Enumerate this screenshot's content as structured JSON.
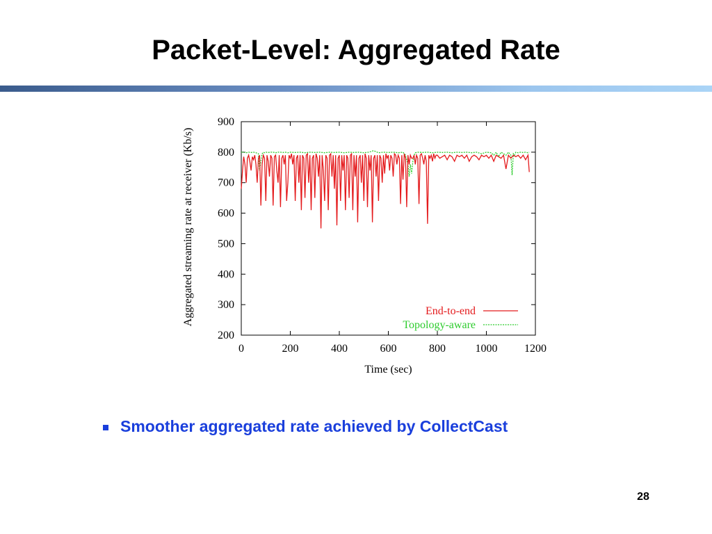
{
  "slide": {
    "title": "Packet-Level: Aggregated Rate",
    "bullet": "Smoother aggregated rate achieved by CollectCast",
    "page_number": "28"
  },
  "colors": {
    "bullet": "#1a3fdc",
    "end_to_end": "#e41a1c",
    "topology_aware": "#2ecc2e"
  },
  "chart_data": {
    "type": "line",
    "title": "",
    "xlabel": "Time (sec)",
    "ylabel": "Aggregated streaming rate at receiver (Kb/s)",
    "xlim": [
      0,
      1200
    ],
    "ylim": [
      200,
      900
    ],
    "xticks": [
      0,
      200,
      400,
      600,
      800,
      1000,
      1200
    ],
    "yticks": [
      200,
      300,
      400,
      500,
      600,
      700,
      800,
      900
    ],
    "grid": false,
    "legend_position": "bottom-right",
    "series": [
      {
        "name": "End-to-end",
        "style": "solid",
        "color": "#e41a1c",
        "x": [
          0,
          5,
          10,
          15,
          20,
          25,
          30,
          35,
          40,
          45,
          50,
          55,
          60,
          65,
          70,
          75,
          80,
          85,
          90,
          95,
          100,
          105,
          110,
          115,
          120,
          125,
          130,
          135,
          140,
          145,
          150,
          155,
          160,
          165,
          170,
          175,
          180,
          185,
          190,
          195,
          200,
          205,
          210,
          215,
          220,
          225,
          230,
          235,
          240,
          245,
          250,
          255,
          260,
          265,
          270,
          275,
          280,
          285,
          290,
          295,
          300,
          305,
          310,
          315,
          320,
          325,
          330,
          335,
          340,
          345,
          350,
          355,
          360,
          365,
          370,
          375,
          380,
          385,
          390,
          395,
          400,
          405,
          410,
          415,
          420,
          425,
          430,
          435,
          440,
          445,
          450,
          455,
          460,
          465,
          470,
          475,
          480,
          485,
          490,
          495,
          500,
          505,
          510,
          515,
          520,
          525,
          530,
          535,
          540,
          545,
          550,
          555,
          560,
          565,
          570,
          575,
          580,
          585,
          590,
          595,
          600,
          605,
          610,
          615,
          620,
          625,
          630,
          635,
          640,
          645,
          650,
          655,
          660,
          665,
          670,
          675,
          680,
          685,
          690,
          695,
          700,
          705,
          710,
          715,
          720,
          725,
          730,
          735,
          740,
          745,
          750,
          755,
          760,
          765,
          770,
          775,
          780,
          785,
          790,
          795,
          800,
          810,
          820,
          830,
          840,
          850,
          860,
          870,
          880,
          890,
          900,
          910,
          920,
          930,
          940,
          950,
          960,
          970,
          980,
          990,
          1000,
          1010,
          1020,
          1030,
          1040,
          1050,
          1060,
          1070,
          1080,
          1090,
          1100,
          1110,
          1120,
          1130,
          1140,
          1150,
          1160,
          1170,
          1175
        ],
        "y": [
          680,
          740,
          785,
          760,
          700,
          780,
          790,
          770,
          740,
          785,
          775,
          790,
          760,
          700,
          780,
          790,
          625,
          760,
          790,
          780,
          640,
          790,
          770,
          720,
          790,
          780,
          625,
          785,
          790,
          740,
          700,
          790,
          620,
          780,
          790,
          760,
          790,
          640,
          700,
          790,
          780,
          795,
          760,
          790,
          640,
          780,
          790,
          700,
          790,
          610,
          790,
          780,
          650,
          790,
          795,
          700,
          790,
          610,
          780,
          790,
          650,
          795,
          780,
          720,
          790,
          550,
          790,
          740,
          640,
          790,
          780,
          610,
          790,
          795,
          720,
          790,
          680,
          790,
          560,
          780,
          790,
          640,
          790,
          740,
          790,
          610,
          790,
          780,
          650,
          790,
          795,
          610,
          790,
          720,
          790,
          570,
          780,
          790,
          700,
          790,
          640,
          795,
          780,
          620,
          790,
          740,
          790,
          570,
          780,
          790,
          720,
          790,
          640,
          790,
          780,
          700,
          790,
          730,
          795,
          780,
          790,
          740,
          790,
          780,
          720,
          795,
          790,
          760,
          790,
          780,
          630,
          790,
          710,
          795,
          780,
          620,
          790,
          760,
          790,
          780,
          780,
          790,
          760,
          790,
          780,
          630,
          790,
          795,
          780,
          760,
          790,
          770,
          565,
          790,
          780,
          790,
          770,
          795,
          780,
          790,
          790,
          780,
          785,
          790,
          775,
          790,
          785,
          770,
          790,
          785,
          790,
          780,
          790,
          770,
          785,
          790,
          785,
          775,
          790,
          785,
          790,
          780,
          790,
          770,
          790,
          785,
          780,
          790,
          745,
          790,
          780,
          790,
          785,
          790,
          780,
          790,
          775,
          790,
          735
        ]
      },
      {
        "name": "Topology-aware",
        "style": "dotted",
        "color": "#2ecc2e",
        "x": [
          0,
          10,
          20,
          30,
          40,
          50,
          60,
          70,
          75,
          80,
          85,
          90,
          95,
          100,
          110,
          120,
          130,
          140,
          150,
          160,
          170,
          180,
          190,
          200,
          220,
          240,
          260,
          280,
          300,
          320,
          340,
          360,
          380,
          400,
          420,
          440,
          460,
          480,
          500,
          520,
          540,
          560,
          580,
          600,
          620,
          640,
          660,
          670,
          680,
          685,
          690,
          695,
          700,
          705,
          710,
          720,
          740,
          760,
          780,
          800,
          820,
          840,
          860,
          880,
          900,
          920,
          940,
          960,
          980,
          1000,
          1020,
          1030,
          1040,
          1050,
          1060,
          1070,
          1080,
          1090,
          1100,
          1105,
          1110,
          1115,
          1120,
          1130,
          1140,
          1150,
          1160,
          1170,
          1175
        ],
        "y": [
          800,
          800,
          798,
          800,
          799,
          800,
          798,
          795,
          740,
          770,
          795,
          800,
          798,
          800,
          799,
          800,
          800,
          798,
          800,
          800,
          799,
          800,
          798,
          800,
          799,
          800,
          798,
          800,
          799,
          800,
          798,
          800,
          799,
          800,
          798,
          800,
          799,
          800,
          798,
          800,
          805,
          798,
          800,
          799,
          800,
          798,
          800,
          790,
          760,
          720,
          760,
          730,
          770,
          790,
          798,
          800,
          799,
          800,
          798,
          800,
          799,
          800,
          798,
          800,
          799,
          800,
          798,
          800,
          795,
          800,
          798,
          790,
          800,
          785,
          800,
          795,
          790,
          800,
          790,
          725,
          795,
          790,
          800,
          798,
          800,
          799,
          800,
          798,
          800
        ]
      }
    ]
  }
}
